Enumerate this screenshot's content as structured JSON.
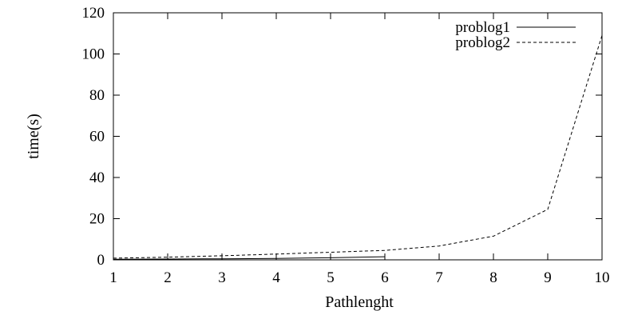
{
  "chart_data": {
    "type": "line",
    "title": "",
    "xlabel": "Pathlenght",
    "ylabel": "time(s)",
    "xlim": [
      1,
      10
    ],
    "ylim": [
      0,
      120
    ],
    "xticks": [
      1,
      2,
      3,
      4,
      5,
      6,
      7,
      8,
      9,
      10
    ],
    "yticks": [
      0,
      20,
      40,
      60,
      80,
      100,
      120
    ],
    "grid": false,
    "legend_position": "top-right",
    "series": [
      {
        "name": "problog1",
        "style": "solid",
        "color": "#000000",
        "x": [
          1,
          2,
          3,
          4,
          5,
          6
        ],
        "y": [
          0.3,
          0.4,
          0.5,
          0.7,
          1.0,
          1.5
        ]
      },
      {
        "name": "problog2",
        "style": "dashed",
        "color": "#000000",
        "x": [
          1,
          2,
          3,
          4,
          5,
          6,
          7,
          8,
          9,
          10
        ],
        "y": [
          0.8,
          1.3,
          2.0,
          2.8,
          3.7,
          4.6,
          6.7,
          11.5,
          24.5,
          109
        ]
      }
    ]
  }
}
